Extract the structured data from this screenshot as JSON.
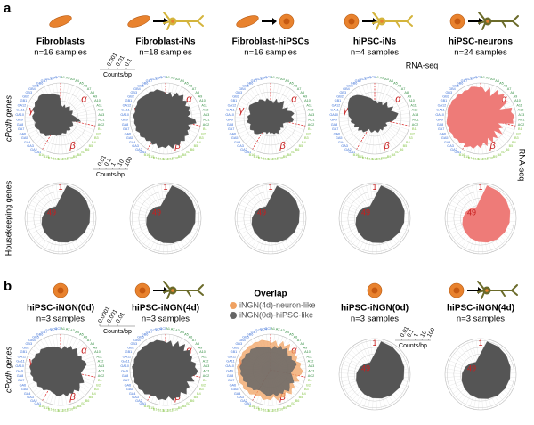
{
  "genes": {
    "alpha": "α",
    "beta": "β",
    "gamma": "γ",
    "names": [
      "A1",
      "A2",
      "A3",
      "A4",
      "A5",
      "A6",
      "A7",
      "A8",
      "A9",
      "A10",
      "A11",
      "A12",
      "A13",
      "AC1",
      "AC2",
      "B1",
      "B2",
      "B3",
      "B4",
      "B5",
      "B6",
      "B7",
      "B8",
      "B9",
      "B10",
      "B11",
      "B12",
      "B13",
      "B14",
      "B15",
      "B16",
      "GA1",
      "GA2",
      "GA3",
      "GA4",
      "GA5",
      "GA6",
      "GA7",
      "GA8",
      "GA9",
      "GA10",
      "GA11",
      "GA12",
      "GB1",
      "GB2",
      "GB3",
      "GB4",
      "GB5",
      "GB6",
      "GB7",
      "GC3",
      "GC4",
      "GC5"
    ]
  },
  "cpcdh_rlim": [
    0.0001,
    1
  ],
  "housekeeping_rlim": [
    0.001,
    200
  ],
  "housekeeping_labels": {
    "first": "1",
    "last": "49"
  },
  "cpcdh_axis_title": "cPcdh genes",
  "housekeeping_axis_title": "Housekeeping genes",
  "rna_seq": "RNA-seq",
  "panel_a": {
    "label": "a",
    "cpcdh_scale": {
      "ticks": [
        0.001,
        0.01,
        0.1
      ],
      "unit": "Counts/bp"
    },
    "housekeeping_scale": {
      "ticks": [
        0.01,
        0.1,
        1,
        10,
        100
      ],
      "unit": "Counts/bp"
    },
    "samples": [
      {
        "title": "Fibroblasts",
        "n": "n=16 samples",
        "color": "#555555",
        "cpcdh": [
          0.003,
          0.002,
          0.004,
          0.002,
          0.003,
          0.005,
          0.003,
          0.002,
          0.004,
          0.003,
          0.002,
          0.003,
          0.005,
          0.01,
          0.02,
          0.002,
          0.003,
          0.004,
          0.003,
          0.002,
          0.005,
          0.004,
          0.003,
          0.006,
          0.005,
          0.004,
          0.008,
          0.006,
          0.01,
          0.008,
          0.012,
          0.02,
          0.04,
          0.03,
          0.06,
          0.05,
          0.08,
          0.1,
          0.07,
          0.12,
          0.15,
          0.1,
          0.2,
          0.15,
          0.25,
          0.2,
          0.3,
          0.25,
          0.15,
          0.1,
          0.08,
          0.05,
          0.04
        ],
        "housekeeping": [
          100,
          70,
          50,
          35,
          25,
          15,
          10,
          6,
          4,
          2.5,
          1.5,
          1,
          0.6,
          0.3,
          0.15,
          0.08
        ]
      },
      {
        "title": "Fibroblast-iNs",
        "n": "n=18 samples",
        "color": "#555555",
        "cpcdh": [
          0.05,
          0.1,
          0.03,
          0.15,
          0.08,
          0.2,
          0.06,
          0.12,
          0.04,
          0.1,
          0.05,
          0.08,
          0.03,
          0.2,
          0.3,
          0.04,
          0.1,
          0.06,
          0.15,
          0.08,
          0.2,
          0.1,
          0.25,
          0.12,
          0.3,
          0.1,
          0.2,
          0.15,
          0.25,
          0.1,
          0.2,
          0.1,
          0.2,
          0.15,
          0.3,
          0.2,
          0.4,
          0.25,
          0.35,
          0.3,
          0.45,
          0.3,
          0.4,
          0.35,
          0.5,
          0.4,
          0.3,
          0.25,
          0.3,
          0.2,
          0.25,
          0.15,
          0.1
        ],
        "housekeeping": [
          100,
          80,
          60,
          40,
          30,
          20,
          12,
          8,
          5,
          3,
          2,
          1.2,
          0.7,
          0.4,
          0.2,
          0.1
        ]
      },
      {
        "title": "Fibroblast-hiPSCs",
        "n": "n=16 samples",
        "color": "#555555",
        "cpcdh": [
          0.01,
          0.005,
          0.02,
          0.008,
          0.01,
          0.03,
          0.01,
          0.005,
          0.02,
          0.01,
          0.03,
          0.05,
          0.02,
          0.04,
          0.03,
          0.005,
          0.003,
          0.004,
          0.006,
          0.003,
          0.005,
          0.004,
          0.008,
          0.005,
          0.006,
          0.004,
          0.005,
          0.003,
          0.006,
          0.004,
          0.005,
          0.01,
          0.02,
          0.03,
          0.02,
          0.04,
          0.03,
          0.02,
          0.05,
          0.03,
          0.04,
          0.02,
          0.03,
          0.05,
          0.06,
          0.04,
          0.03,
          0.02,
          0.03,
          0.02,
          0.01,
          0.02,
          0.01
        ],
        "housekeeping": [
          90,
          60,
          45,
          30,
          20,
          14,
          9,
          6,
          4,
          2.5,
          1.6,
          1,
          0.6,
          0.3,
          0.15,
          0.08
        ]
      },
      {
        "title": "hiPSC-iNs",
        "n": "n=4 samples",
        "color": "#555555",
        "cpcdh": [
          0.01,
          0.005,
          0.008,
          0.01,
          0.005,
          0.02,
          0.01,
          0.008,
          0.03,
          0.01,
          0.02,
          0.05,
          0.03,
          0.02,
          0.01,
          0.003,
          0.002,
          0.004,
          0.003,
          0.002,
          0.003,
          0.004,
          0.002,
          0.003,
          0.004,
          0.003,
          0.002,
          0.003,
          0.004,
          0.003,
          0.002,
          0.005,
          0.01,
          0.008,
          0.02,
          0.01,
          0.03,
          0.02,
          0.05,
          0.04,
          0.08,
          0.1,
          0.15,
          0.2,
          0.3,
          0.4,
          0.3,
          0.2,
          0.1,
          0.05,
          0.03,
          0.02,
          0.01
        ],
        "housekeeping": [
          100,
          75,
          55,
          40,
          28,
          18,
          11,
          7,
          4.5,
          3,
          1.8,
          1.1,
          0.6,
          0.35,
          0.18,
          0.09
        ]
      },
      {
        "title": "hiPSC-neurons",
        "n": "n=24 samples",
        "color": "#ee7b78",
        "cpcdh": [
          0.3,
          0.1,
          0.4,
          0.05,
          0.5,
          0.2,
          0.6,
          0.1,
          0.4,
          0.02,
          0.5,
          0.3,
          0.6,
          0.4,
          0.5,
          0.01,
          0.05,
          0.02,
          0.1,
          0.01,
          0.08,
          0.03,
          0.1,
          0.02,
          0.15,
          0.05,
          0.2,
          0.1,
          0.3,
          0.2,
          0.4,
          0.2,
          0.4,
          0.3,
          0.5,
          0.4,
          0.6,
          0.5,
          0.7,
          0.6,
          0.5,
          0.6,
          0.7,
          0.5,
          0.6,
          0.4,
          0.5,
          0.3,
          0.4,
          0.3,
          0.5,
          0.4,
          0.3
        ],
        "housekeeping": [
          100,
          70,
          50,
          35,
          24,
          15,
          10,
          6,
          3.5,
          2.2,
          1.3,
          0.8,
          0.45,
          0.25,
          0.12,
          0.06
        ]
      }
    ]
  },
  "panel_b": {
    "label": "b",
    "cpcdh_scale": {
      "ticks": [
        0.0001,
        0.001,
        0.01
      ],
      "unit": "Counts/bp"
    },
    "housekeeping_scale": {
      "ticks": [
        0.01,
        0.1,
        1,
        10,
        100
      ],
      "unit": "Counts/bp"
    },
    "samples": [
      {
        "title": "hiPSC-iNGN(0d)",
        "n": "n=3 samples",
        "color": "#555555",
        "cpcdh": [
          0.02,
          0.05,
          0.03,
          0.08,
          0.04,
          0.1,
          0.05,
          0.03,
          0.06,
          0.04,
          0.08,
          0.1,
          0.05,
          0.03,
          0.02,
          0.03,
          0.05,
          0.1,
          0.04,
          0.08,
          0.15,
          0.05,
          0.1,
          0.06,
          0.12,
          0.05,
          0.08,
          0.1,
          0.06,
          0.05,
          0.04,
          0.05,
          0.1,
          0.08,
          0.15,
          0.1,
          0.2,
          0.15,
          0.25,
          0.2,
          0.3,
          0.2,
          0.25,
          0.15,
          0.2,
          0.1,
          0.15,
          0.1,
          0.08,
          0.06,
          0.05,
          0.04,
          0.03
        ],
        "housekeeping": [
          100,
          72,
          52,
          36,
          25,
          16,
          10,
          6,
          4,
          2.4,
          1.5,
          0.9,
          0.55,
          0.3,
          0.15,
          0.08
        ]
      },
      {
        "title": "hiPSC-iNGN(4d)",
        "n": "n=3 samples",
        "color": "#555555",
        "cpcdh": [
          0.1,
          0.2,
          0.05,
          0.3,
          0.1,
          0.4,
          0.08,
          0.3,
          0.15,
          0.2,
          0.1,
          0.3,
          0.2,
          0.4,
          0.3,
          0.1,
          0.3,
          0.05,
          0.2,
          0.15,
          0.4,
          0.1,
          0.3,
          0.2,
          0.35,
          0.1,
          0.25,
          0.2,
          0.3,
          0.15,
          0.2,
          0.2,
          0.4,
          0.3,
          0.5,
          0.35,
          0.6,
          0.4,
          0.5,
          0.45,
          0.6,
          0.4,
          0.5,
          0.4,
          0.5,
          0.35,
          0.4,
          0.3,
          0.35,
          0.25,
          0.3,
          0.2,
          0.15
        ],
        "housekeeping": [
          100,
          78,
          58,
          40,
          28,
          18,
          12,
          7,
          4.5,
          2.8,
          1.7,
          1,
          0.6,
          0.35,
          0.18,
          0.09
        ]
      }
    ],
    "overlap": {
      "title": "Overlap",
      "legend": [
        {
          "name": "iNGN(4d)-neuron-like",
          "color": "#f0a262"
        },
        {
          "name": "iNGN(0d)-hiPSC-like",
          "color": "#666666"
        }
      ]
    }
  }
}
